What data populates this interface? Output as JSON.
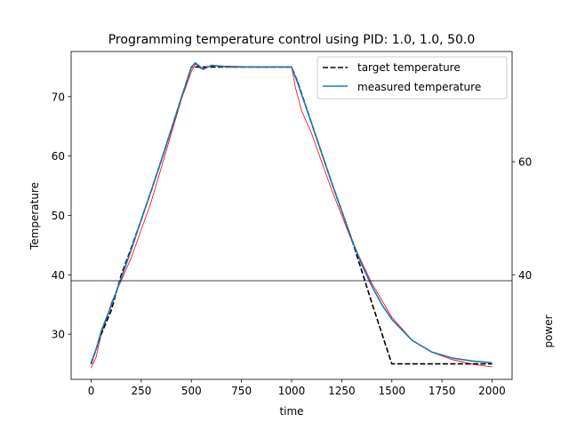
{
  "chart_data": {
    "type": "line",
    "title": "Programming temperature control using PID: 1.0, 1.0, 50.0",
    "xlabel": "time",
    "ylabel": "Temperature",
    "y2label": "power",
    "xlim": [
      -100,
      2100
    ],
    "ylim": [
      22.4,
      77.6
    ],
    "y2lim": [
      21.5,
      79.5
    ],
    "x_ticks": [
      0,
      250,
      500,
      750,
      1000,
      1250,
      1500,
      1750,
      2000
    ],
    "y_ticks": [
      30,
      40,
      50,
      60,
      70
    ],
    "y2_ticks": [
      40,
      60
    ],
    "inset_divider_y": 39,
    "legend": {
      "location": "top-right",
      "entries": [
        "target temperature",
        "measured temperature"
      ]
    },
    "series": [
      {
        "name": "target temperature",
        "axis": "temperature",
        "style": "dashed",
        "color": "#000000",
        "x": [
          0,
          50,
          100,
          150,
          200,
          250,
          300,
          350,
          400,
          450,
          500,
          510,
          600,
          700,
          800,
          900,
          1000,
          1030,
          1100,
          1200,
          1300,
          1400,
          1500,
          1600,
          1700,
          1800,
          1900,
          2000
        ],
        "y": [
          25,
          30,
          34,
          40,
          44.5,
          49.3,
          54.2,
          59.3,
          64.5,
          69.8,
          75,
          75,
          75,
          75,
          75,
          75,
          75,
          72.5,
          65.5,
          55.5,
          46,
          35.3,
          25,
          25,
          25,
          25,
          25,
          25
        ]
      },
      {
        "name": "measured temperature",
        "axis": "temperature",
        "style": "solid",
        "color": "#1f77b4",
        "x": [
          0,
          25,
          50,
          100,
          150,
          200,
          250,
          300,
          350,
          400,
          450,
          500,
          520,
          560,
          600,
          650,
          700,
          800,
          900,
          1000,
          1030,
          1100,
          1200,
          1300,
          1350,
          1400,
          1450,
          1500,
          1600,
          1700,
          1800,
          1900,
          2000
        ],
        "y": [
          25.2,
          27.5,
          30.5,
          34.8,
          39.5,
          44.2,
          49.3,
          54.2,
          59.3,
          64.5,
          69.8,
          75,
          75.7,
          74.6,
          75.3,
          75.1,
          75,
          75,
          75,
          75,
          72.3,
          65.5,
          55.5,
          46,
          41.7,
          38.1,
          35,
          32.5,
          29,
          27,
          26,
          25.5,
          25.2
        ]
      },
      {
        "name": "power",
        "axis": "power",
        "style": "solid",
        "color": "#ff0000",
        "x": [
          0,
          25,
          50,
          75,
          100,
          150,
          200,
          250,
          300,
          350,
          400,
          450,
          500,
          520,
          550,
          600,
          700,
          800,
          900,
          1000,
          1020,
          1050,
          1100,
          1200,
          1300,
          1400,
          1500,
          1600,
          1700,
          1800,
          1900,
          2000
        ],
        "y": [
          23.5,
          25.5,
          29.5,
          32,
          35,
          39,
          43,
          48,
          53,
          59,
          65,
          71,
          76,
          77.3,
          76.4,
          77,
          76.9,
          76.8,
          76.8,
          76.8,
          73,
          69,
          65,
          55,
          46,
          38.5,
          32.5,
          28.5,
          26.3,
          25,
          24.2,
          23.7
        ]
      }
    ]
  }
}
